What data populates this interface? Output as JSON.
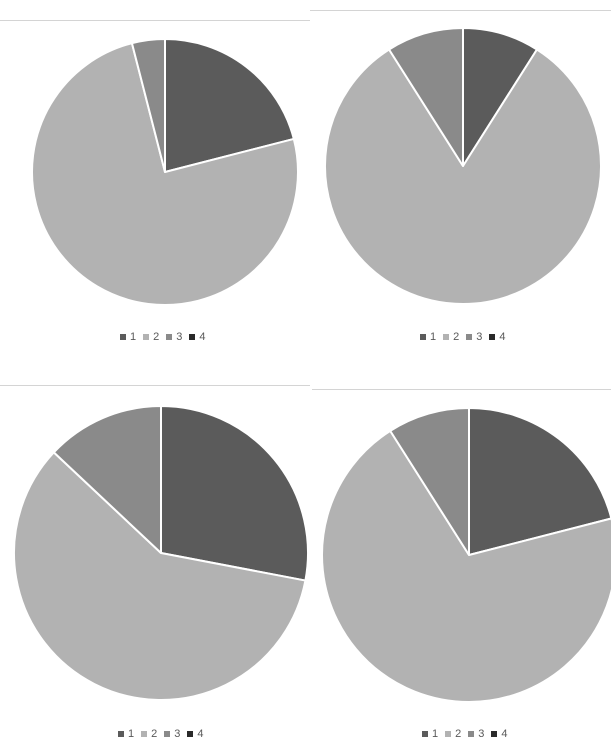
{
  "chart_data": [
    {
      "type": "pie",
      "categories": [
        "1",
        "2",
        "3",
        "4"
      ],
      "values": [
        21,
        75,
        4,
        0
      ],
      "colors": [
        "#5b5b5b",
        "#b2b2b2",
        "#8a8a8a",
        "#2a2a2a"
      ],
      "start_angle_deg": 0,
      "direction": "clockwise",
      "legend": {
        "position": "bottom",
        "labels": [
          "1",
          "2",
          "3",
          "4"
        ]
      }
    },
    {
      "type": "pie",
      "categories": [
        "1",
        "2",
        "3",
        "4"
      ],
      "values": [
        9,
        82,
        9,
        0
      ],
      "colors": [
        "#5b5b5b",
        "#b2b2b2",
        "#8a8a8a",
        "#2a2a2a"
      ],
      "start_angle_deg": 0,
      "direction": "clockwise",
      "legend": {
        "position": "bottom",
        "labels": [
          "1",
          "2",
          "3",
          "4"
        ]
      }
    },
    {
      "type": "pie",
      "categories": [
        "1",
        "2",
        "3",
        "4"
      ],
      "values": [
        28,
        59,
        13,
        0
      ],
      "colors": [
        "#5b5b5b",
        "#b2b2b2",
        "#8a8a8a",
        "#2a2a2a"
      ],
      "start_angle_deg": 0,
      "direction": "clockwise",
      "legend": {
        "position": "bottom",
        "labels": [
          "1",
          "2",
          "3",
          "4"
        ]
      }
    },
    {
      "type": "pie",
      "categories": [
        "1",
        "2",
        "3",
        "4"
      ],
      "values": [
        21,
        70,
        9,
        0
      ],
      "colors": [
        "#5b5b5b",
        "#b2b2b2",
        "#8a8a8a",
        "#2a2a2a"
      ],
      "start_angle_deg": 0,
      "direction": "clockwise",
      "legend": {
        "position": "bottom",
        "labels": [
          "1",
          "2",
          "3",
          "4"
        ]
      }
    }
  ]
}
